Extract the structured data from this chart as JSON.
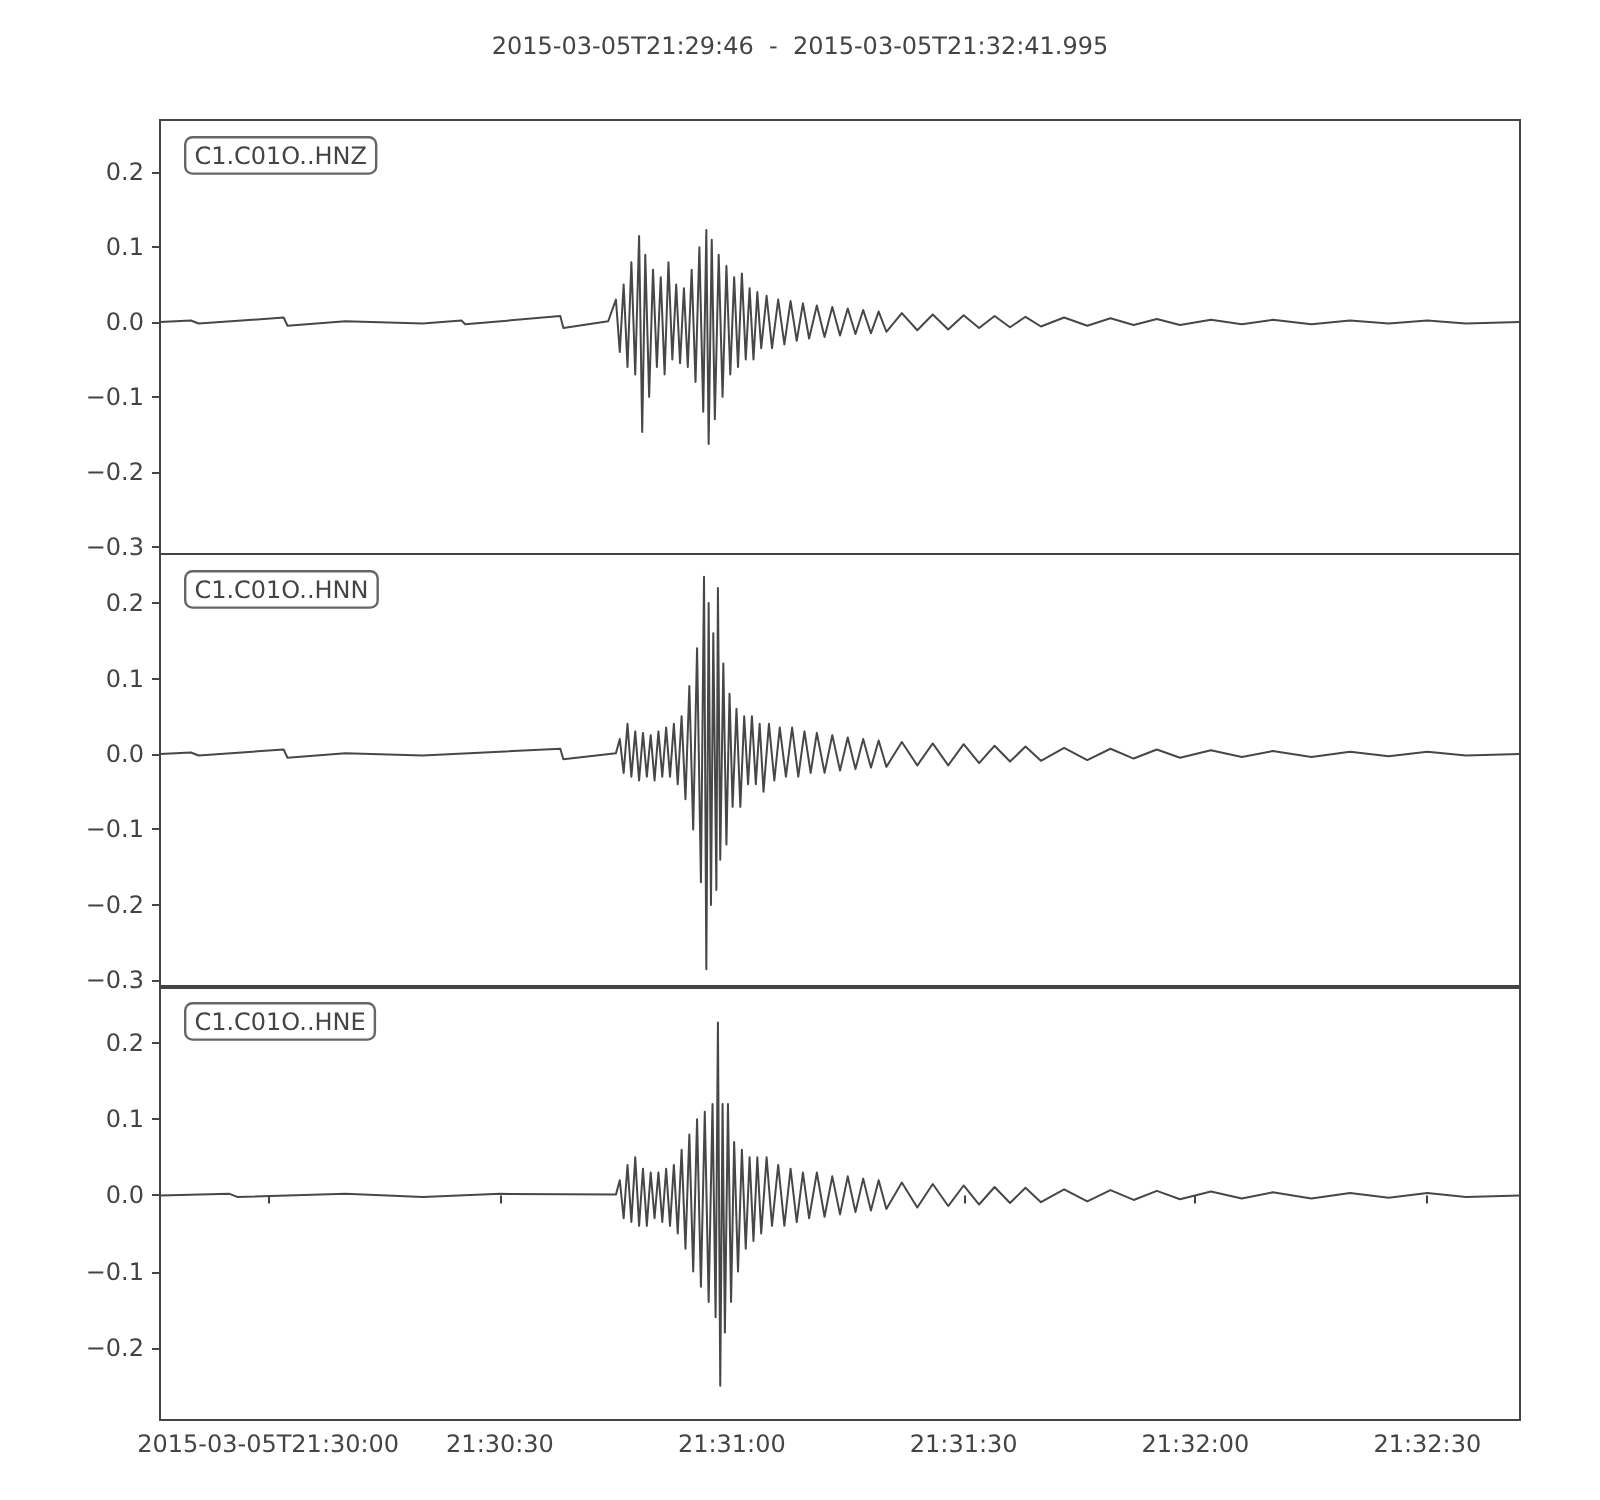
{
  "chart_data": [
    {
      "type": "line",
      "title": "2015-03-05T21:29:46  -  2015-03-05T21:32:41.995",
      "annotations": [
        "C1.C01O..HNZ"
      ],
      "tick_labels": "y",
      "grid": false,
      "xlim": [
        "2015-03-05T21:29:46",
        "2015-03-05T21:32:41.995"
      ],
      "ylim": [
        -0.31,
        0.27
      ],
      "yticks": [
        {
          "value": -0.3,
          "label": "−0.3"
        },
        {
          "value": -0.2,
          "label": "−0.2"
        },
        {
          "value": -0.1,
          "label": "−0.1"
        },
        {
          "value": 0,
          "label": "0.0"
        },
        {
          "value": 0.1,
          "label": "0.1"
        },
        {
          "value": 0.2,
          "label": "0.2"
        }
      ],
      "x": [
        "2015-03-05T21:29:46",
        "2015-03-05T21:29:50",
        "2015-03-05T21:29:51",
        "2015-03-05T21:30:02",
        "2015-03-05T21:30:02.5",
        "2015-03-05T21:30:10",
        "2015-03-05T21:30:20",
        "2015-03-05T21:30:25",
        "2015-03-05T21:30:25.5",
        "2015-03-05T21:30:37.8",
        "2015-03-05T21:30:38.2",
        "2015-03-05T21:30:44",
        "2015-03-05T21:30:45",
        "2015-03-05T21:30:45.5",
        "2015-03-05T21:30:46",
        "2015-03-05T21:30:46.5",
        "2015-03-05T21:30:47",
        "2015-03-05T21:30:47.5",
        "2015-03-05T21:30:48",
        "2015-03-05T21:30:48.4",
        "2015-03-05T21:30:48.8",
        "2015-03-05T21:30:49.3",
        "2015-03-05T21:30:49.8",
        "2015-03-05T21:30:50.3",
        "2015-03-05T21:30:50.8",
        "2015-03-05T21:30:51.3",
        "2015-03-05T21:30:51.8",
        "2015-03-05T21:30:52.3",
        "2015-03-05T21:30:52.8",
        "2015-03-05T21:30:53.3",
        "2015-03-05T21:30:53.8",
        "2015-03-05T21:30:54.3",
        "2015-03-05T21:30:54.8",
        "2015-03-05T21:30:55.3",
        "2015-03-05T21:30:55.8",
        "2015-03-05T21:30:56.3",
        "2015-03-05T21:30:56.7",
        "2015-03-05T21:30:57",
        "2015-03-05T21:30:57.4",
        "2015-03-05T21:30:57.8",
        "2015-03-05T21:30:58.3",
        "2015-03-05T21:30:58.8",
        "2015-03-05T21:30:59.3",
        "2015-03-05T21:30:59.8",
        "2015-03-05T21:31:00.3",
        "2015-03-05T21:31:00.8",
        "2015-03-05T21:31:01.3",
        "2015-03-05T21:31:01.8",
        "2015-03-05T21:31:02.3",
        "2015-03-05T21:31:02.8",
        "2015-03-05T21:31:03.3",
        "2015-03-05T21:31:03.8",
        "2015-03-05T21:31:04.5",
        "2015-03-05T21:31:05.2",
        "2015-03-05T21:31:06",
        "2015-03-05T21:31:06.8",
        "2015-03-05T21:31:07.6",
        "2015-03-05T21:31:08.4",
        "2015-03-05T21:31:09.2",
        "2015-03-05T21:31:10",
        "2015-03-05T21:31:11",
        "2015-03-05T21:31:12",
        "2015-03-05T21:31:13",
        "2015-03-05T21:31:14",
        "2015-03-05T21:31:15",
        "2015-03-05T21:31:16",
        "2015-03-05T21:31:17",
        "2015-03-05T21:31:18",
        "2015-03-05T21:31:19",
        "2015-03-05T21:31:20",
        "2015-03-05T21:31:22",
        "2015-03-05T21:31:24",
        "2015-03-05T21:31:26",
        "2015-03-05T21:31:28",
        "2015-03-05T21:31:30",
        "2015-03-05T21:31:32",
        "2015-03-05T21:31:34",
        "2015-03-05T21:31:36",
        "2015-03-05T21:31:38",
        "2015-03-05T21:31:40",
        "2015-03-05T21:31:43",
        "2015-03-05T21:31:46",
        "2015-03-05T21:31:49",
        "2015-03-05T21:31:52",
        "2015-03-05T21:31:55",
        "2015-03-05T21:31:58",
        "2015-03-05T21:32:02",
        "2015-03-05T21:32:06",
        "2015-03-05T21:32:10",
        "2015-03-05T21:32:15",
        "2015-03-05T21:32:20",
        "2015-03-05T21:32:25",
        "2015-03-05T21:32:30",
        "2015-03-05T21:32:35",
        "2015-03-05T21:32:41.995"
      ],
      "series": [
        {
          "color": "#474747",
          "values": [
            0,
            0.002,
            -0.002,
            0.006,
            -0.005,
            0.001,
            -0.002,
            0.002,
            -0.003,
            0.008,
            -0.008,
            0.001,
            0.03,
            -0.04,
            0.05,
            -0.06,
            0.08,
            -0.07,
            0.115,
            -0.147,
            0.09,
            -0.1,
            0.07,
            -0.06,
            0.06,
            -0.07,
            0.08,
            -0.05,
            0.05,
            -0.055,
            0.045,
            -0.06,
            0.07,
            -0.08,
            0.1,
            -0.12,
            0.123,
            -0.163,
            0.11,
            -0.13,
            0.09,
            -0.1,
            0.075,
            -0.07,
            0.06,
            -0.06,
            0.065,
            -0.05,
            0.045,
            -0.05,
            0.04,
            -0.035,
            0.035,
            -0.035,
            0.03,
            -0.03,
            0.028,
            -0.025,
            0.025,
            -0.022,
            0.022,
            -0.02,
            0.02,
            -0.018,
            0.018,
            -0.016,
            0.016,
            -0.015,
            0.014,
            -0.013,
            0.012,
            -0.011,
            0.01,
            -0.01,
            0.009,
            -0.008,
            0.008,
            -0.007,
            0.007,
            -0.006,
            0.006,
            -0.005,
            0.005,
            -0.004,
            0.004,
            -0.004,
            0.003,
            -0.003,
            0.003,
            -0.003,
            0.002,
            -0.002,
            0.002,
            -0.002,
            0
          ]
        }
      ]
    },
    {
      "type": "line",
      "annotations": [
        "C1.C01O..HNN"
      ],
      "tick_labels": "y",
      "grid": false,
      "xlim": [
        "2015-03-05T21:29:46",
        "2015-03-05T21:32:41.995"
      ],
      "ylim": [
        -0.31,
        0.265
      ],
      "yticks": [
        {
          "value": -0.3,
          "label": "−0.3"
        },
        {
          "value": -0.2,
          "label": "−0.2"
        },
        {
          "value": -0.1,
          "label": "−0.1"
        },
        {
          "value": 0,
          "label": "0.0"
        },
        {
          "value": 0.1,
          "label": "0.1"
        },
        {
          "value": 0.2,
          "label": "0.2"
        }
      ],
      "x": [
        "2015-03-05T21:29:46",
        "2015-03-05T21:29:50",
        "2015-03-05T21:29:51",
        "2015-03-05T21:30:02",
        "2015-03-05T21:30:02.5",
        "2015-03-05T21:30:10",
        "2015-03-05T21:30:20",
        "2015-03-05T21:30:37.8",
        "2015-03-05T21:30:38.2",
        "2015-03-05T21:30:45",
        "2015-03-05T21:30:45.5",
        "2015-03-05T21:30:46",
        "2015-03-05T21:30:46.5",
        "2015-03-05T21:30:47",
        "2015-03-05T21:30:47.5",
        "2015-03-05T21:30:48",
        "2015-03-05T21:30:48.5",
        "2015-03-05T21:30:49",
        "2015-03-05T21:30:49.5",
        "2015-03-05T21:30:50",
        "2015-03-05T21:30:50.5",
        "2015-03-05T21:30:51",
        "2015-03-05T21:30:51.5",
        "2015-03-05T21:30:52",
        "2015-03-05T21:30:52.5",
        "2015-03-05T21:30:53",
        "2015-03-05T21:30:53.5",
        "2015-03-05T21:30:54",
        "2015-03-05T21:30:54.5",
        "2015-03-05T21:30:55",
        "2015-03-05T21:30:55.5",
        "2015-03-05T21:30:56",
        "2015-03-05T21:30:56.4",
        "2015-03-05T21:30:56.7",
        "2015-03-05T21:30:57",
        "2015-03-05T21:30:57.3",
        "2015-03-05T21:30:57.6",
        "2015-03-05T21:30:58",
        "2015-03-05T21:30:58.2",
        "2015-03-05T21:30:58.5",
        "2015-03-05T21:30:58.9",
        "2015-03-05T21:30:59.3",
        "2015-03-05T21:30:59.7",
        "2015-03-05T21:31:00.1",
        "2015-03-05T21:31:00.6",
        "2015-03-05T21:31:01.1",
        "2015-03-05T21:31:01.6",
        "2015-03-05T21:31:02.1",
        "2015-03-05T21:31:02.6",
        "2015-03-05T21:31:03.1",
        "2015-03-05T21:31:03.6",
        "2015-03-05T21:31:04.1",
        "2015-03-05T21:31:04.8",
        "2015-03-05T21:31:05.5",
        "2015-03-05T21:31:06.2",
        "2015-03-05T21:31:07",
        "2015-03-05T21:31:07.8",
        "2015-03-05T21:31:08.6",
        "2015-03-05T21:31:09.4",
        "2015-03-05T21:31:10.2",
        "2015-03-05T21:31:11",
        "2015-03-05T21:31:12",
        "2015-03-05T21:31:13",
        "2015-03-05T21:31:14",
        "2015-03-05T21:31:15",
        "2015-03-05T21:31:16",
        "2015-03-05T21:31:17",
        "2015-03-05T21:31:18",
        "2015-03-05T21:31:19",
        "2015-03-05T21:31:20",
        "2015-03-05T21:31:22",
        "2015-03-05T21:31:24",
        "2015-03-05T21:31:26",
        "2015-03-05T21:31:28",
        "2015-03-05T21:31:30",
        "2015-03-05T21:31:32",
        "2015-03-05T21:31:34",
        "2015-03-05T21:31:36",
        "2015-03-05T21:31:38",
        "2015-03-05T21:31:40",
        "2015-03-05T21:31:43",
        "2015-03-05T21:31:46",
        "2015-03-05T21:31:49",
        "2015-03-05T21:31:52",
        "2015-03-05T21:31:55",
        "2015-03-05T21:31:58",
        "2015-03-05T21:32:02",
        "2015-03-05T21:32:06",
        "2015-03-05T21:32:10",
        "2015-03-05T21:32:15",
        "2015-03-05T21:32:20",
        "2015-03-05T21:32:25",
        "2015-03-05T21:32:30",
        "2015-03-05T21:32:35",
        "2015-03-05T21:32:41.995"
      ],
      "series": [
        {
          "color": "#474747",
          "values": [
            0,
            0.002,
            -0.002,
            0.006,
            -0.005,
            0.001,
            -0.002,
            0.007,
            -0.007,
            0.001,
            0.02,
            -0.025,
            0.04,
            -0.03,
            0.03,
            -0.035,
            0.028,
            -0.03,
            0.025,
            -0.035,
            0.03,
            -0.03,
            0.035,
            -0.03,
            0.04,
            -0.04,
            0.05,
            -0.06,
            0.09,
            -0.1,
            0.14,
            -0.17,
            0.235,
            -0.285,
            0.2,
            -0.2,
            0.16,
            -0.18,
            0.22,
            -0.14,
            0.12,
            -0.12,
            0.08,
            -0.07,
            0.06,
            -0.07,
            0.05,
            -0.04,
            0.05,
            -0.04,
            0.04,
            -0.05,
            0.04,
            -0.035,
            0.035,
            -0.03,
            0.035,
            -0.03,
            0.03,
            -0.025,
            0.028,
            -0.025,
            0.025,
            -0.022,
            0.022,
            -0.02,
            0.02,
            -0.018,
            0.018,
            -0.017,
            0.016,
            -0.015,
            0.014,
            -0.015,
            0.013,
            -0.012,
            0.011,
            -0.01,
            0.01,
            -0.009,
            0.008,
            -0.008,
            0.007,
            -0.006,
            0.006,
            -0.005,
            0.005,
            -0.004,
            0.004,
            -0.004,
            0.003,
            -0.003,
            0.003,
            -0.002,
            0
          ]
        }
      ]
    },
    {
      "type": "line",
      "annotations": [
        "C1.C01O..HNE"
      ],
      "grid": false,
      "xlim": [
        "2015-03-05T21:29:46",
        "2015-03-05T21:32:41.995"
      ],
      "ylim": [
        -0.295,
        0.275
      ],
      "xticks": [
        {
          "value": "2015-03-05T21:30:00",
          "label": "2015-03-05T21:30:00"
        },
        {
          "value": "2015-03-05T21:30:30",
          "label": "21:30:30"
        },
        {
          "value": "2015-03-05T21:31:00",
          "label": "21:31:00"
        },
        {
          "value": "2015-03-05T21:31:30",
          "label": "21:31:30"
        },
        {
          "value": "2015-03-05T21:32:00",
          "label": "21:32:00"
        },
        {
          "value": "2015-03-05T21:32:30",
          "label": "21:32:30"
        }
      ],
      "yticks": [
        {
          "value": -0.2,
          "label": "−0.2"
        },
        {
          "value": -0.1,
          "label": "−0.1"
        },
        {
          "value": 0,
          "label": "0.0"
        },
        {
          "value": 0.1,
          "label": "0.1"
        },
        {
          "value": 0.2,
          "label": "0.2"
        }
      ],
      "x": [
        "2015-03-05T21:29:46",
        "2015-03-05T21:29:55",
        "2015-03-05T21:29:56",
        "2015-03-05T21:30:10",
        "2015-03-05T21:30:20",
        "2015-03-05T21:30:30",
        "2015-03-05T21:30:45",
        "2015-03-05T21:30:45.5",
        "2015-03-05T21:30:46",
        "2015-03-05T21:30:46.5",
        "2015-03-05T21:30:47",
        "2015-03-05T21:30:47.5",
        "2015-03-05T21:30:48",
        "2015-03-05T21:30:48.5",
        "2015-03-05T21:30:49",
        "2015-03-05T21:30:49.5",
        "2015-03-05T21:30:50",
        "2015-03-05T21:30:50.5",
        "2015-03-05T21:30:51",
        "2015-03-05T21:30:51.5",
        "2015-03-05T21:30:52",
        "2015-03-05T21:30:52.5",
        "2015-03-05T21:30:53",
        "2015-03-05T21:30:53.5",
        "2015-03-05T21:30:54",
        "2015-03-05T21:30:54.5",
        "2015-03-05T21:30:55",
        "2015-03-05T21:30:55.5",
        "2015-03-05T21:30:56",
        "2015-03-05T21:30:56.5",
        "2015-03-05T21:30:57",
        "2015-03-05T21:30:57.5",
        "2015-03-05T21:30:57.9",
        "2015-03-05T21:30:58.2",
        "2015-03-05T21:30:58.5",
        "2015-03-05T21:30:58.8",
        "2015-03-05T21:30:59.1",
        "2015-03-05T21:30:59.5",
        "2015-03-05T21:30:59.9",
        "2015-03-05T21:31:00.3",
        "2015-03-05T21:31:00.8",
        "2015-03-05T21:31:01.3",
        "2015-03-05T21:31:01.8",
        "2015-03-05T21:31:02.3",
        "2015-03-05T21:31:02.8",
        "2015-03-05T21:31:03.3",
        "2015-03-05T21:31:03.8",
        "2015-03-05T21:31:04.5",
        "2015-03-05T21:31:05.2",
        "2015-03-05T21:31:06",
        "2015-03-05T21:31:06.8",
        "2015-03-05T21:31:07.6",
        "2015-03-05T21:31:08.4",
        "2015-03-05T21:31:09.2",
        "2015-03-05T21:31:10",
        "2015-03-05T21:31:11",
        "2015-03-05T21:31:12",
        "2015-03-05T21:31:13",
        "2015-03-05T21:31:14",
        "2015-03-05T21:31:15",
        "2015-03-05T21:31:16",
        "2015-03-05T21:31:17",
        "2015-03-05T21:31:18",
        "2015-03-05T21:31:19",
        "2015-03-05T21:31:20",
        "2015-03-05T21:31:22",
        "2015-03-05T21:31:24",
        "2015-03-05T21:31:26",
        "2015-03-05T21:31:28",
        "2015-03-05T21:31:30",
        "2015-03-05T21:31:32",
        "2015-03-05T21:31:34",
        "2015-03-05T21:31:36",
        "2015-03-05T21:31:38",
        "2015-03-05T21:31:40",
        "2015-03-05T21:31:43",
        "2015-03-05T21:31:46",
        "2015-03-05T21:31:49",
        "2015-03-05T21:31:52",
        "2015-03-05T21:31:55",
        "2015-03-05T21:31:58",
        "2015-03-05T21:32:02",
        "2015-03-05T21:32:06",
        "2015-03-05T21:32:10",
        "2015-03-05T21:32:15",
        "2015-03-05T21:32:20",
        "2015-03-05T21:32:25",
        "2015-03-05T21:32:30",
        "2015-03-05T21:32:35",
        "2015-03-05T21:32:41.995"
      ],
      "series": [
        {
          "color": "#474747",
          "values": [
            0,
            0.002,
            -0.002,
            0.002,
            -0.002,
            0.002,
            0.001,
            0.02,
            -0.03,
            0.04,
            -0.035,
            0.05,
            -0.04,
            0.035,
            -0.04,
            0.03,
            -0.03,
            0.03,
            -0.035,
            0.035,
            -0.04,
            0.04,
            -0.05,
            0.06,
            -0.07,
            0.08,
            -0.1,
            0.1,
            -0.12,
            0.11,
            -0.14,
            0.12,
            -0.16,
            0.227,
            -0.25,
            0.12,
            -0.18,
            0.12,
            -0.14,
            0.07,
            -0.1,
            0.06,
            -0.07,
            0.05,
            -0.06,
            0.05,
            -0.05,
            0.05,
            -0.04,
            0.04,
            -0.04,
            0.035,
            -0.035,
            0.03,
            -0.03,
            0.03,
            -0.028,
            0.025,
            -0.025,
            0.025,
            -0.022,
            0.022,
            -0.02,
            0.02,
            -0.018,
            0.017,
            -0.016,
            0.015,
            -0.014,
            0.013,
            -0.012,
            0.011,
            -0.01,
            0.01,
            -0.009,
            0.008,
            -0.008,
            0.007,
            -0.006,
            0.006,
            -0.005,
            0.005,
            -0.004,
            0.004,
            -0.004,
            0.003,
            -0.003,
            0.003,
            -0.002,
            0
          ]
        }
      ]
    }
  ]
}
